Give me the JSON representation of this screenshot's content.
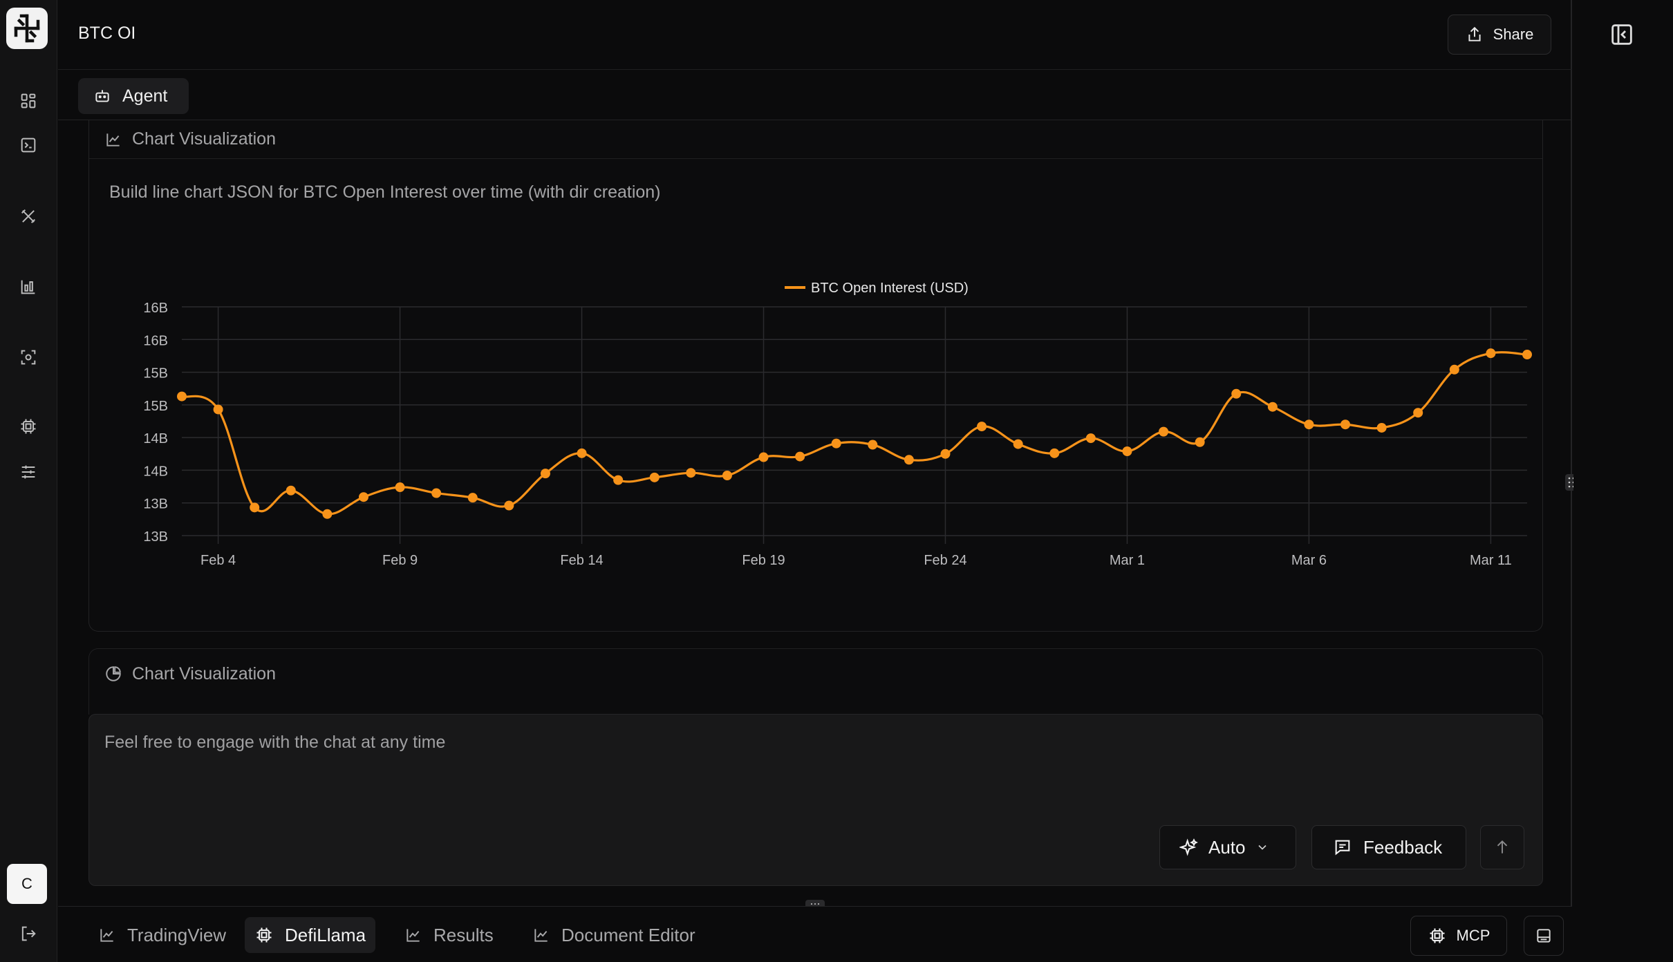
{
  "app": {
    "title": "BTC OI",
    "share_label": "Share",
    "agent_tab_label": "Agent",
    "avatar_initial": "C"
  },
  "rail_icons": [
    "dashboard-icon",
    "terminal-icon",
    "tools-icon",
    "chart-bar-icon",
    "scan-icon",
    "chip-icon",
    "sliders-icon",
    "logout-icon"
  ],
  "card1": {
    "header": "Chart Visualization",
    "description": "Build line chart JSON for BTC Open Interest over time (with dir creation)"
  },
  "card2": {
    "header": "Chart Visualization"
  },
  "composer": {
    "placeholder": "Feel free to engage with the chat at any time",
    "mode_label": "Auto",
    "feedback_label": "Feedback"
  },
  "bottom_tabs": [
    {
      "label": "TradingView",
      "icon": "chart-line-icon",
      "active": false
    },
    {
      "label": "DefiLlama",
      "icon": "chip-icon",
      "active": true
    },
    {
      "label": "Results",
      "icon": "chart-line-icon",
      "active": false
    },
    {
      "label": "Document Editor",
      "icon": "chart-line-icon",
      "active": false
    }
  ],
  "mcp_label": "MCP",
  "colors": {
    "accent": "#f7931a",
    "background": "#0b0b0c",
    "grid": "#2b2b2e"
  },
  "chart_data": {
    "type": "line",
    "series": [
      {
        "name": "BTC Open Interest (USD)",
        "x": [
          "Feb 3",
          "Feb 4",
          "Feb 5",
          "Feb 6",
          "Feb 7",
          "Feb 8",
          "Feb 9",
          "Feb 10",
          "Feb 11",
          "Feb 12",
          "Feb 13",
          "Feb 14",
          "Feb 15",
          "Feb 16",
          "Feb 17",
          "Feb 18",
          "Feb 19",
          "Feb 20",
          "Feb 21",
          "Feb 22",
          "Feb 23",
          "Feb 24",
          "Feb 25",
          "Feb 26",
          "Feb 27",
          "Feb 28",
          "Mar 1",
          "Mar 2",
          "Mar 3",
          "Mar 4",
          "Mar 5",
          "Mar 6",
          "Mar 7",
          "Mar 8",
          "Mar 9",
          "Mar 10",
          "Mar 11",
          "Mar 12"
        ],
        "values": [
          14.88,
          14.68,
          13.18,
          13.44,
          13.08,
          13.34,
          13.49,
          13.4,
          13.33,
          13.21,
          13.7,
          14.01,
          13.6,
          13.64,
          13.71,
          13.67,
          13.95,
          13.96,
          14.16,
          14.14,
          13.91,
          14.0,
          14.42,
          14.15,
          14.01,
          14.24,
          14.04,
          14.34,
          14.18,
          14.92,
          14.72,
          14.45,
          14.45,
          14.4,
          14.63,
          15.29,
          15.54,
          15.52
        ]
      }
    ],
    "x_tick_labels": [
      "Feb 4",
      "Feb 9",
      "Feb 14",
      "Feb 19",
      "Feb 24",
      "Mar 1",
      "Mar 6",
      "Mar 11"
    ],
    "y_tick_labels": [
      "16B",
      "16B",
      "15B",
      "15B",
      "14B",
      "14B",
      "13B",
      "13B"
    ],
    "ylim": [
      12.75,
      16.25
    ],
    "legend": "top-center",
    "grid": true,
    "color": "#f7931a"
  }
}
